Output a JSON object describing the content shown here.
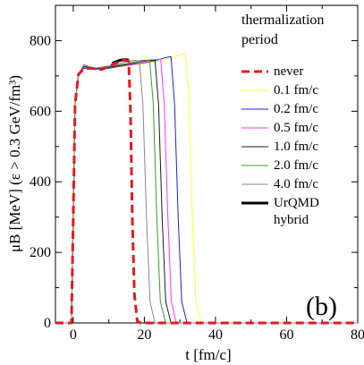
{
  "chart_data": {
    "type": "line",
    "xlabel": "t [fm/c]",
    "ylabel": "μB [MeV]  (ε > 0.3 GeV/fm³)",
    "xlim": [
      -5,
      80
    ],
    "ylim": [
      0,
      900
    ],
    "xticks": [
      "0",
      "20",
      "40",
      "60",
      "80"
    ],
    "yticks": [
      "0",
      "200",
      "400",
      "600",
      "800"
    ],
    "legend_title": "thermalization period",
    "legend_title_lines": [
      "thermalization",
      "period"
    ],
    "panel_label": "(b)",
    "series": [
      {
        "name": "never",
        "color": "#e41a1c",
        "style": "dashed",
        "width": 3,
        "x": [
          -5,
          -0.5,
          0,
          0.5,
          1.5,
          3,
          5,
          8,
          11,
          14,
          15.6,
          16.1,
          16.6,
          17.2,
          18,
          19,
          80
        ],
        "y": [
          0,
          0,
          300,
          620,
          705,
          720,
          722,
          718,
          732,
          745,
          742,
          600,
          300,
          80,
          5,
          0,
          0
        ]
      },
      {
        "name": "0.1 fm/c",
        "color": "#ffff33",
        "style": "solid",
        "width": 1,
        "x": [
          -5,
          -0.5,
          0,
          0.5,
          1.5,
          3,
          6,
          10,
          15,
          20,
          25,
          28,
          30,
          31.5,
          32.5,
          33.5,
          34.5,
          36,
          80
        ],
        "y": [
          0,
          0,
          300,
          620,
          705,
          722,
          718,
          722,
          728,
          735,
          743,
          752,
          760,
          762,
          650,
          300,
          60,
          0,
          0
        ]
      },
      {
        "name": "0.2 fm/c",
        "color": "#1f1fd6",
        "style": "solid",
        "width": 1,
        "x": [
          -5,
          -0.5,
          0,
          0.5,
          1.5,
          3,
          6,
          10,
          15,
          20,
          24,
          26,
          27.5,
          28.5,
          29.5,
          30.5,
          32,
          80
        ],
        "y": [
          0,
          0,
          300,
          620,
          705,
          722,
          718,
          722,
          730,
          737,
          746,
          752,
          755,
          620,
          300,
          60,
          0,
          0
        ]
      },
      {
        "name": "0.5 fm/c",
        "color": "#ff33ff",
        "style": "solid",
        "width": 1,
        "x": [
          -5,
          -0.5,
          0,
          0.5,
          1.5,
          3,
          6,
          10,
          15,
          20,
          23,
          24.6,
          25.6,
          26.6,
          27.6,
          29,
          80
        ],
        "y": [
          0,
          0,
          300,
          620,
          705,
          724,
          718,
          724,
          730,
          738,
          746,
          748,
          620,
          300,
          60,
          0,
          0
        ]
      },
      {
        "name": "1.0 fm/c",
        "color": "#1a1a1a",
        "style": "solid",
        "width": 1,
        "x": [
          -5,
          -0.5,
          0,
          0.5,
          1.5,
          3,
          6,
          10,
          15,
          19,
          21.5,
          23,
          24,
          25,
          26,
          27.5,
          80
        ],
        "y": [
          0,
          0,
          300,
          620,
          705,
          727,
          720,
          725,
          732,
          740,
          745,
          745,
          620,
          300,
          60,
          0,
          0
        ]
      },
      {
        "name": "2.0 fm/c",
        "color": "#33a02c",
        "style": "solid",
        "width": 1,
        "x": [
          -5,
          -0.5,
          0,
          0.5,
          1.5,
          3,
          6,
          10,
          15,
          18,
          20,
          21.5,
          22.5,
          23.5,
          24.5,
          26,
          80
        ],
        "y": [
          0,
          0,
          300,
          620,
          705,
          730,
          722,
          727,
          735,
          742,
          745,
          744,
          620,
          300,
          60,
          0,
          0
        ]
      },
      {
        "name": "4.0 fm/c",
        "color": "#888888",
        "style": "solid",
        "width": 1,
        "x": [
          -5,
          -0.5,
          0,
          0.5,
          1.5,
          3,
          6,
          10,
          14,
          17,
          18.6,
          19.6,
          20.6,
          21.6,
          23,
          80
        ],
        "y": [
          0,
          0,
          300,
          620,
          705,
          732,
          722,
          728,
          738,
          744,
          742,
          620,
          300,
          60,
          0,
          0
        ]
      },
      {
        "name": "UrQMD\nhybrid",
        "color": "#000000",
        "style": "solid",
        "width": 3,
        "x": [
          11,
          12,
          13,
          14,
          15,
          15.6
        ],
        "y": [
          736,
          740,
          744,
          746,
          746,
          745
        ]
      }
    ]
  }
}
